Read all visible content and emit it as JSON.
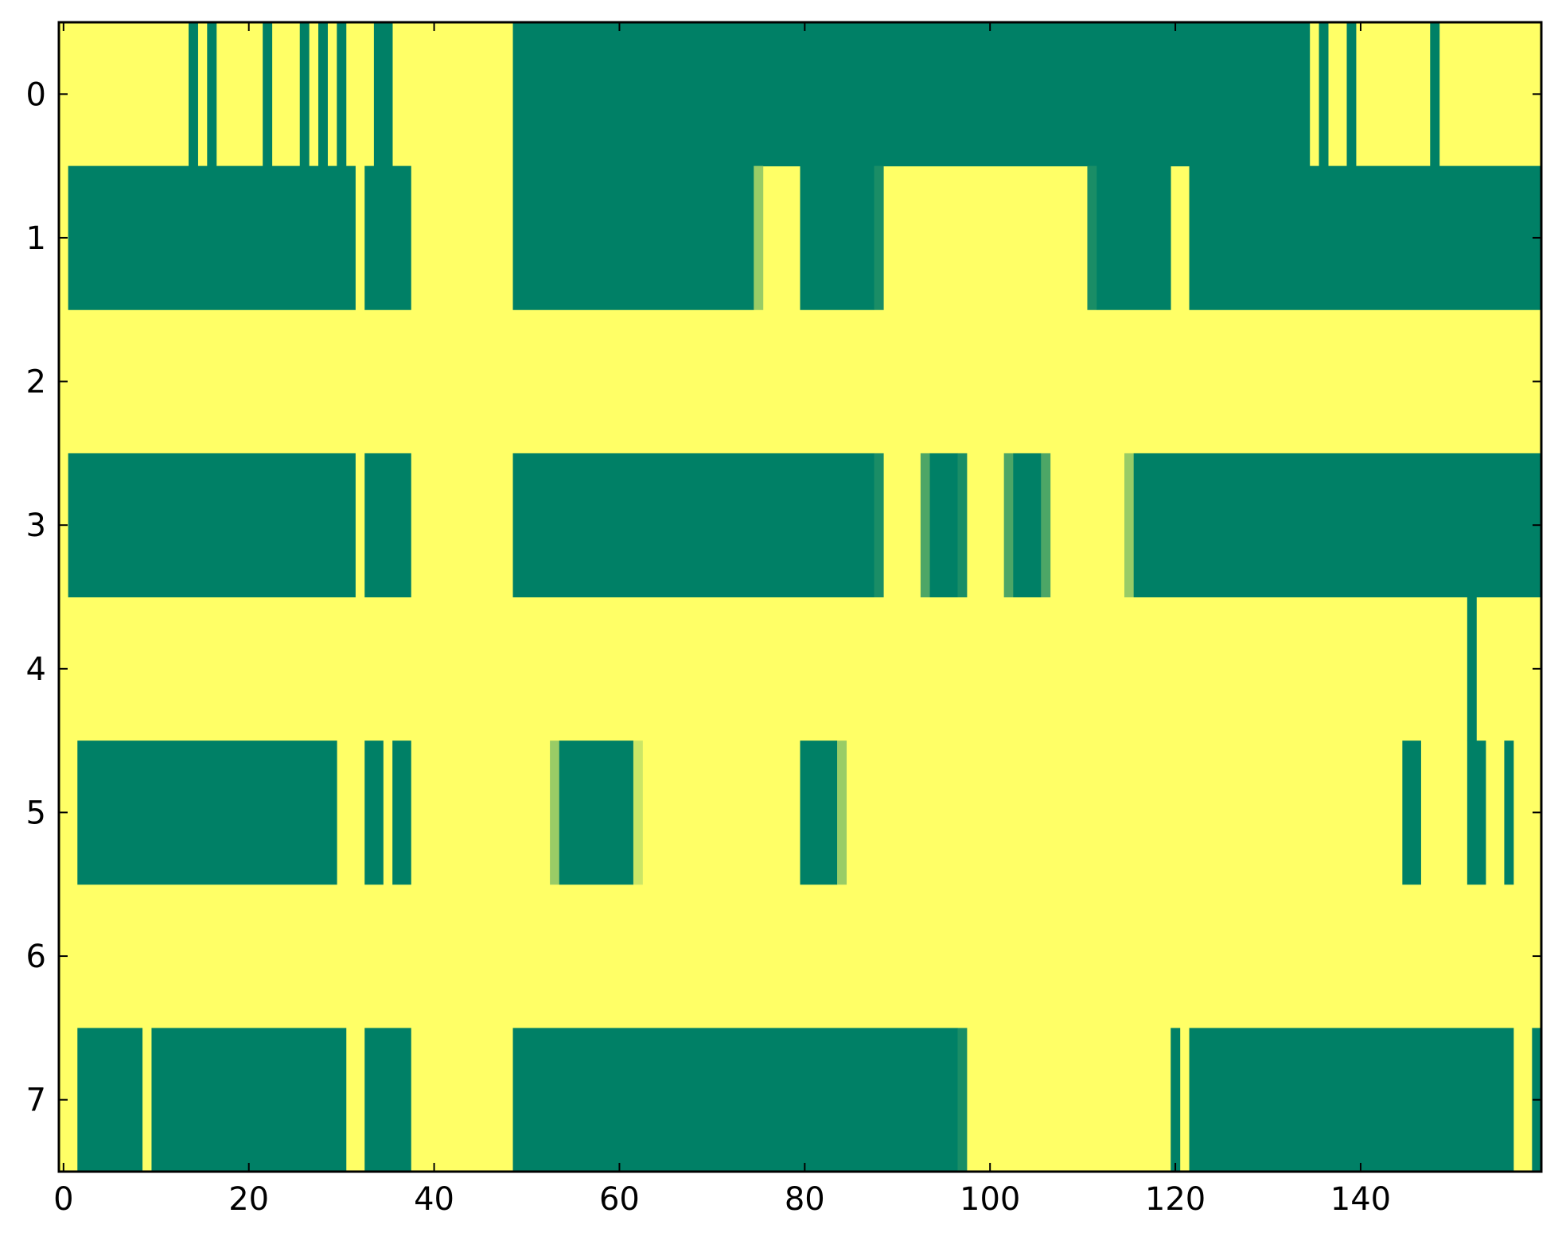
{
  "chart_data": {
    "type": "heatmap",
    "title": "",
    "xlabel": "",
    "ylabel": "",
    "n_columns": 160,
    "rows": [
      0,
      1,
      2,
      3,
      4,
      5,
      6,
      7
    ],
    "xlim": [
      -0.5,
      159.5
    ],
    "ylim": [
      -0.5,
      7.5
    ],
    "x_ticks": [
      0,
      20,
      40,
      60,
      80,
      100,
      120,
      140
    ],
    "x_tick_labels": [
      "0",
      "20",
      "40",
      "60",
      "80",
      "100",
      "120",
      "140"
    ],
    "y_ticks": [
      0,
      1,
      2,
      3,
      4,
      5,
      6,
      7
    ],
    "y_tick_labels": [
      "0",
      "1",
      "2",
      "3",
      "4",
      "5",
      "6",
      "7"
    ],
    "grid": false,
    "colorscale": {
      "low": "#008066",
      "high": "#ffff66"
    },
    "background_value": 1.0,
    "cells_description": "Runs of low-valued (green) cells per row: [row, start_column, end_column, value]; all other cells are 1.0 (yellow).",
    "runs": [
      [
        0,
        14,
        14,
        0.0
      ],
      [
        0,
        16,
        16,
        0.0
      ],
      [
        0,
        22,
        22,
        0.0
      ],
      [
        0,
        26,
        26,
        0.0
      ],
      [
        0,
        28,
        28,
        0.0
      ],
      [
        0,
        30,
        30,
        0.0
      ],
      [
        0,
        34,
        35,
        0.0
      ],
      [
        0,
        49,
        134,
        0.0
      ],
      [
        0,
        136,
        136,
        0.0
      ],
      [
        0,
        139,
        139,
        0.0
      ],
      [
        0,
        148,
        148,
        0.0
      ],
      [
        1,
        1,
        31,
        0.0
      ],
      [
        1,
        33,
        37,
        0.0
      ],
      [
        1,
        49,
        74,
        0.0
      ],
      [
        1,
        75,
        75,
        0.6
      ],
      [
        1,
        80,
        87,
        0.0
      ],
      [
        1,
        88,
        88,
        0.1
      ],
      [
        1,
        111,
        111,
        0.1
      ],
      [
        1,
        112,
        119,
        0.0
      ],
      [
        1,
        122,
        159,
        0.0
      ],
      [
        3,
        1,
        31,
        0.0
      ],
      [
        3,
        33,
        37,
        0.0
      ],
      [
        3,
        49,
        87,
        0.0
      ],
      [
        3,
        88,
        88,
        0.1
      ],
      [
        3,
        93,
        93,
        0.3
      ],
      [
        3,
        94,
        96,
        0.0
      ],
      [
        3,
        97,
        97,
        0.1
      ],
      [
        3,
        102,
        102,
        0.3
      ],
      [
        3,
        103,
        105,
        0.0
      ],
      [
        3,
        106,
        106,
        0.3
      ],
      [
        3,
        115,
        115,
        0.6
      ],
      [
        3,
        116,
        159,
        0.0
      ],
      [
        4,
        152,
        152,
        0.0
      ],
      [
        5,
        2,
        29,
        0.0
      ],
      [
        5,
        33,
        34,
        0.0
      ],
      [
        5,
        36,
        37,
        0.0
      ],
      [
        5,
        53,
        53,
        0.6
      ],
      [
        5,
        54,
        61,
        0.0
      ],
      [
        5,
        62,
        62,
        0.8
      ],
      [
        5,
        80,
        83,
        0.0
      ],
      [
        5,
        84,
        84,
        0.6
      ],
      [
        5,
        145,
        146,
        0.0
      ],
      [
        5,
        152,
        153,
        0.0
      ],
      [
        5,
        156,
        156,
        0.0
      ],
      [
        7,
        2,
        8,
        0.0
      ],
      [
        7,
        10,
        30,
        0.0
      ],
      [
        7,
        33,
        37,
        0.0
      ],
      [
        7,
        49,
        96,
        0.0
      ],
      [
        7,
        97,
        97,
        0.1
      ],
      [
        7,
        120,
        120,
        0.0
      ],
      [
        7,
        122,
        156,
        0.0
      ],
      [
        7,
        159,
        159,
        0.0
      ]
    ]
  }
}
